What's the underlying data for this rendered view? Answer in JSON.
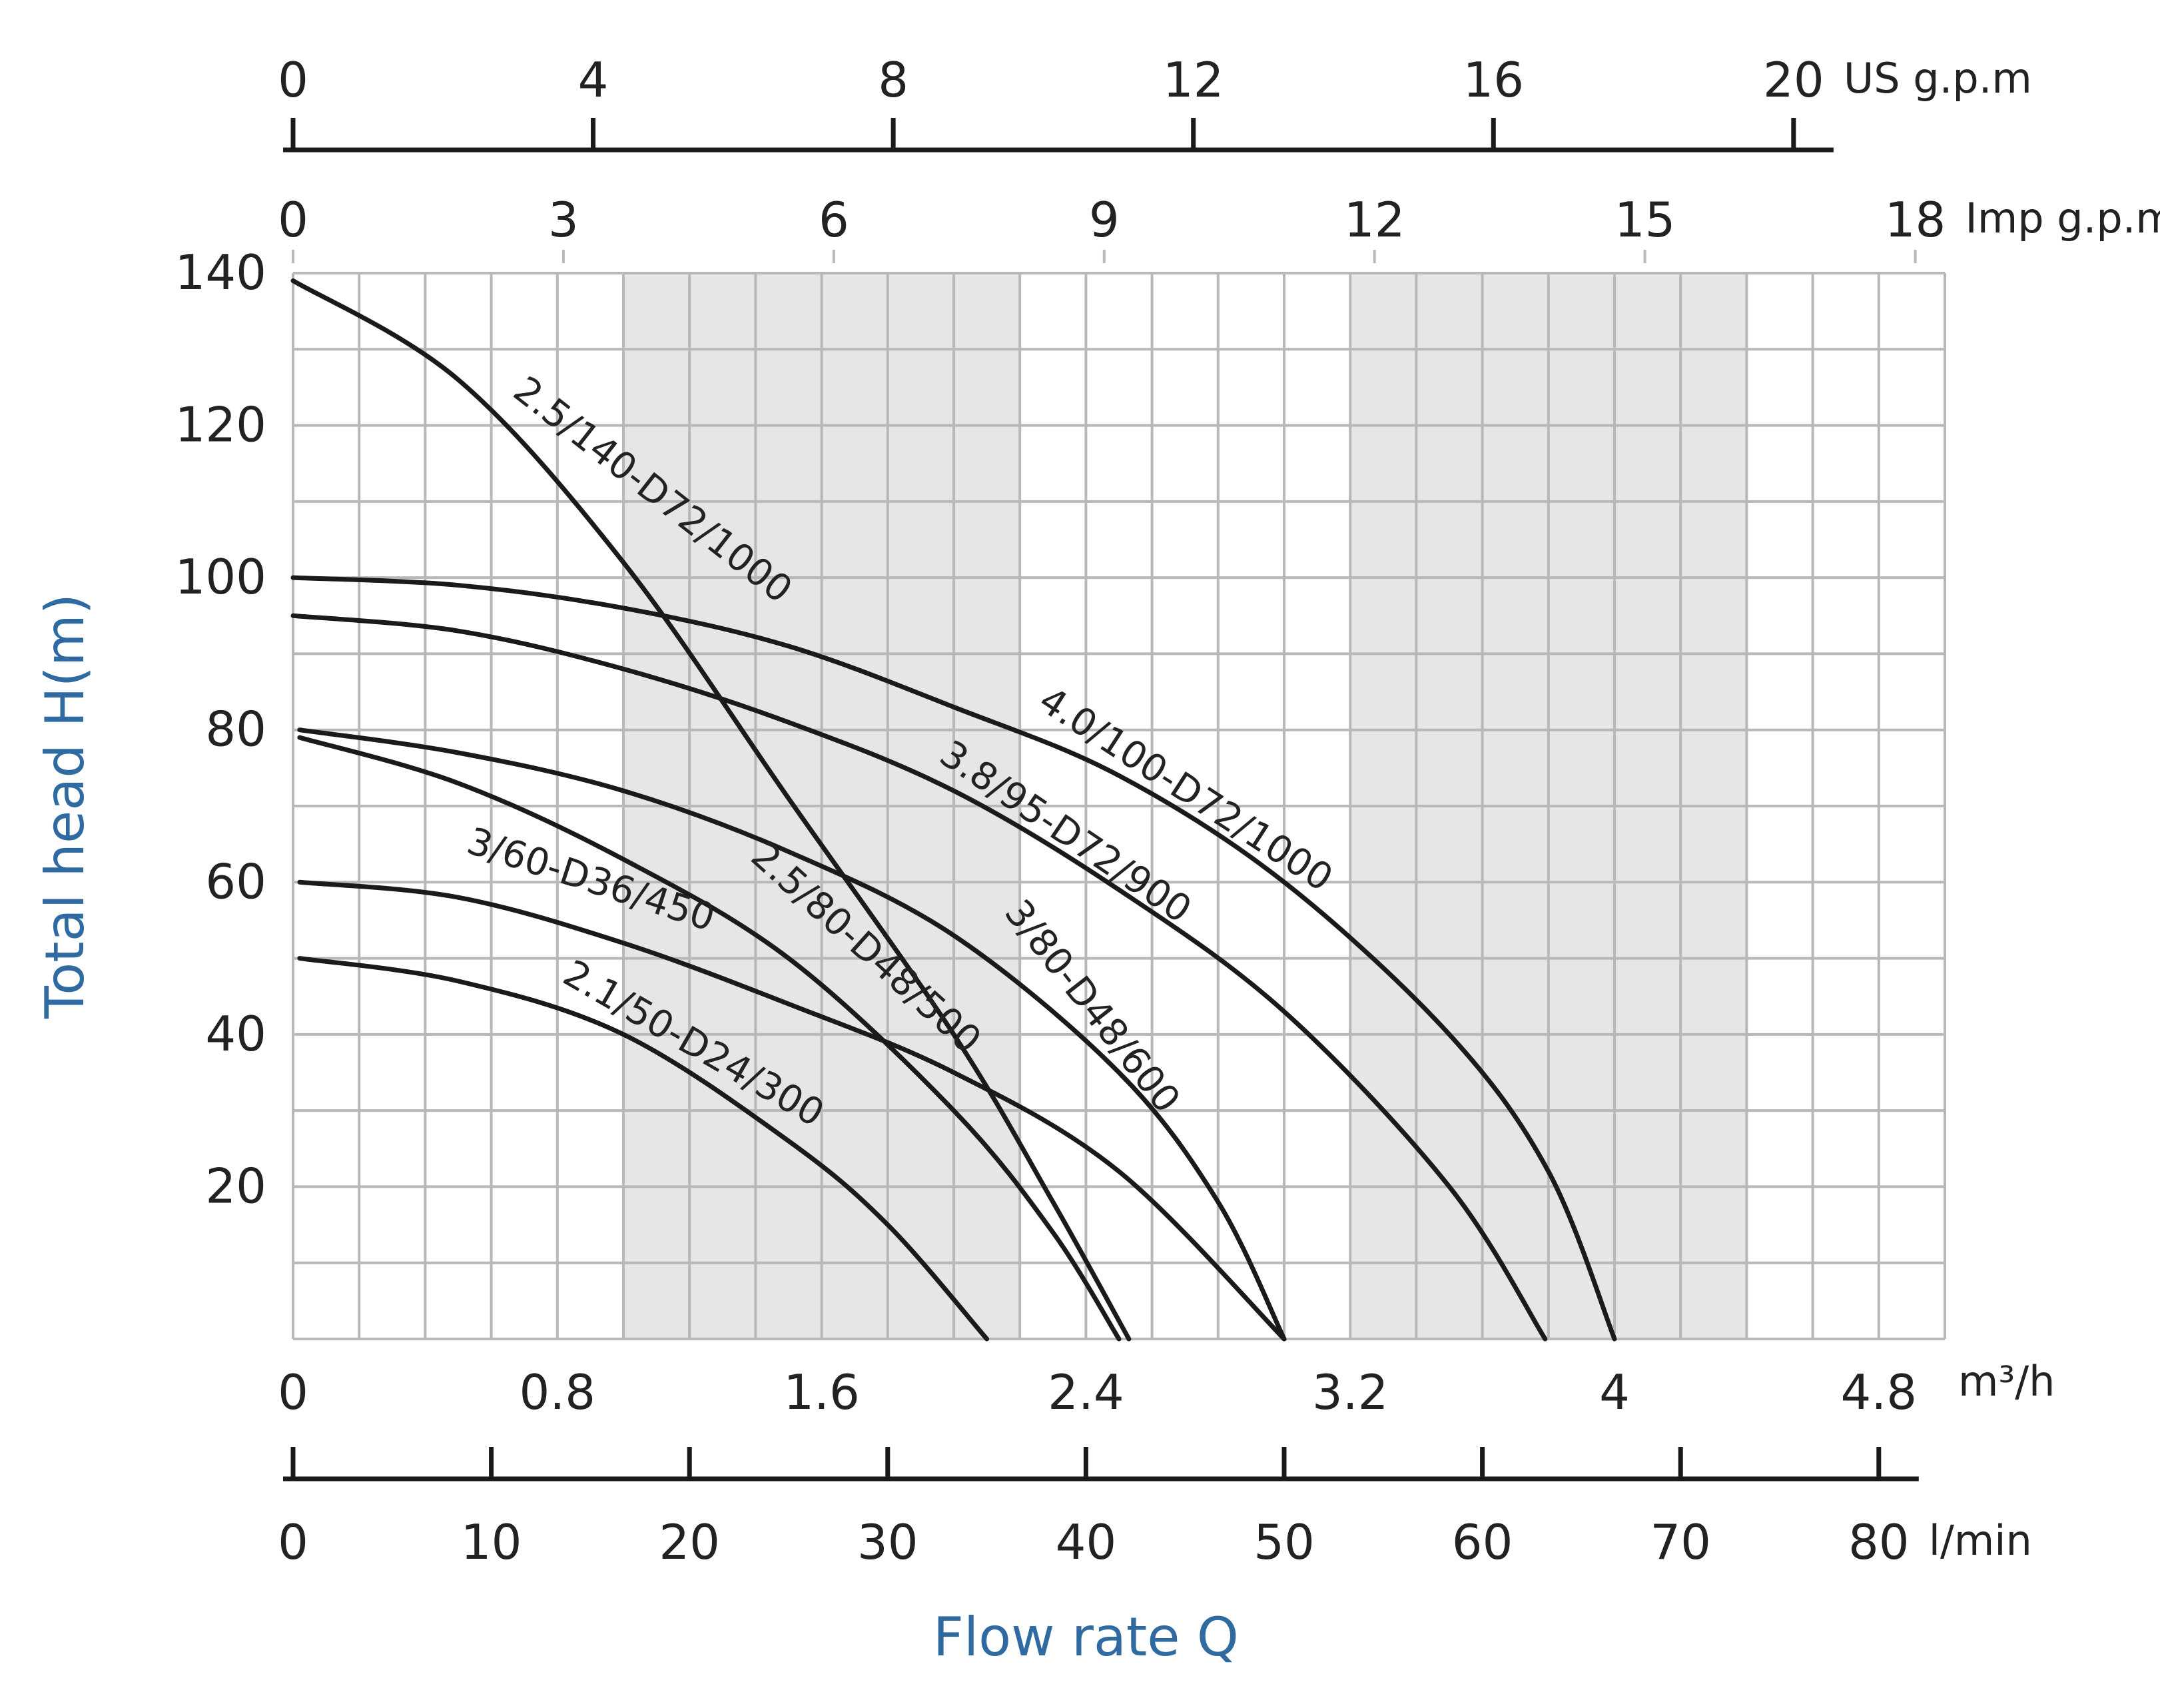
{
  "chart_data": {
    "type": "line",
    "title": "",
    "xlabel": "Flow rate Q",
    "ylabel": "Total head H(m)",
    "xlim": [
      0,
      5.0
    ],
    "ylim": [
      0,
      140
    ],
    "x_unit": "m³/h",
    "x_ticks": [
      "0",
      "0.8",
      "1.6",
      "2.4",
      "3.2",
      "4",
      "4.8"
    ],
    "x_tick_values": [
      0,
      0.8,
      1.6,
      2.4,
      3.2,
      4.0,
      4.8
    ],
    "y_ticks": [
      "20",
      "40",
      "60",
      "80",
      "100",
      "120",
      "140"
    ],
    "y_tick_values": [
      20,
      40,
      60,
      80,
      100,
      120,
      140
    ],
    "grid": true,
    "shaded_bands": [
      [
        1.0,
        2.2
      ],
      [
        3.2,
        4.4
      ]
    ],
    "colors": {
      "curve": "#1a1a1a",
      "grid": "#b8b8b8",
      "shade": "#e6e6e6",
      "axis_title": "#2f6aa0"
    },
    "secondary_axes": [
      {
        "name": "US g.p.m",
        "position": "top",
        "ticks": [
          "0",
          "4",
          "8",
          "12",
          "16",
          "20"
        ],
        "values": [
          0,
          4,
          8,
          12,
          16,
          20
        ]
      },
      {
        "name": "Imp g.p.m",
        "position": "top",
        "ticks": [
          "0",
          "3",
          "6",
          "9",
          "12",
          "15",
          "18"
        ],
        "values": [
          0,
          3,
          6,
          9,
          12,
          15,
          18
        ]
      },
      {
        "name": "l/min",
        "position": "bottom",
        "ticks": [
          "0",
          "10",
          "20",
          "30",
          "40",
          "50",
          "60",
          "70",
          "80"
        ],
        "values": [
          0,
          10,
          20,
          30,
          40,
          50,
          60,
          70,
          80
        ]
      }
    ],
    "series": [
      {
        "name": "2.5/140-D72/1000",
        "x": [
          0,
          0.5,
          1.0,
          1.5,
          2.0,
          2.3,
          2.53
        ],
        "y": [
          139,
          126,
          102,
          71,
          40,
          18,
          0
        ]
      },
      {
        "name": "4.0/100-D72/1000",
        "x": [
          0,
          0.5,
          1.0,
          1.5,
          2.0,
          2.5,
          3.0,
          3.5,
          3.8,
          4.0
        ],
        "y": [
          100,
          99,
          96,
          91,
          83,
          74,
          60,
          40,
          22,
          0
        ]
      },
      {
        "name": "3.8/95-D72/900",
        "x": [
          0,
          0.5,
          1.0,
          1.5,
          2.0,
          2.5,
          3.0,
          3.5,
          3.79
        ],
        "y": [
          95,
          93,
          88,
          81,
          72,
          59,
          43,
          20,
          0
        ]
      },
      {
        "name": "3/80-D48/600",
        "x": [
          0.02,
          0.5,
          1.0,
          1.5,
          2.0,
          2.5,
          2.8,
          3.0
        ],
        "y": [
          80,
          77,
          72,
          64,
          53,
          35,
          18,
          0
        ]
      },
      {
        "name": "2.5/80-D48/500",
        "x": [
          0.02,
          0.5,
          1.0,
          1.5,
          2.0,
          2.3,
          2.5
        ],
        "y": [
          79,
          73,
          63,
          50,
          30,
          14,
          0
        ]
      },
      {
        "name": "3/60-D36/450",
        "x": [
          0.02,
          0.5,
          1.0,
          1.5,
          2.0,
          2.5,
          3.0
        ],
        "y": [
          60,
          58,
          52,
          44,
          35,
          22,
          0
        ]
      },
      {
        "name": "2.1/50-D24/300",
        "x": [
          0.02,
          0.5,
          1.0,
          1.5,
          1.8,
          2.1
        ],
        "y": [
          50,
          47,
          40,
          26,
          15,
          0
        ]
      }
    ]
  }
}
